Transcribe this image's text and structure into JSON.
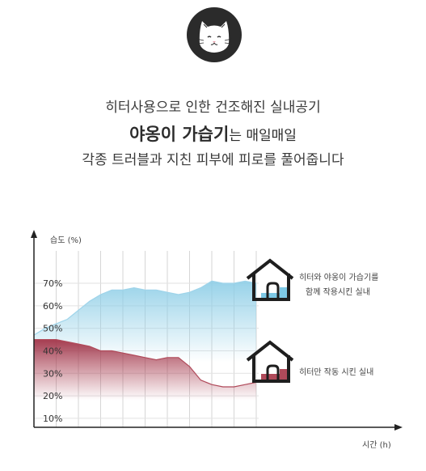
{
  "headline": {
    "line1": "히터사용으로 인한 건조해진 실내공기",
    "line2_bold": "야옹이 가습기",
    "line2_rest": "는 매일매일",
    "line3": "각종 트러블과 지친 피부에 피로를 풀어줍니다"
  },
  "logo": {
    "icon": "cat-face-icon",
    "bg_color": "#2b2b2b"
  },
  "chart_data": {
    "type": "area",
    "ylabel": "습도 (%)",
    "xlabel": "시간 (h)",
    "y_ticks": [
      "70%",
      "60%",
      "50%",
      "40%",
      "30%",
      "20%",
      "10%"
    ],
    "y_tick_values": [
      70,
      60,
      50,
      40,
      30,
      20,
      10
    ],
    "ylim": [
      6,
      88
    ],
    "xlim": [
      0,
      12
    ],
    "grid": true,
    "series": [
      {
        "color": "#9fd4ea",
        "x": [
          0,
          0.5,
          1,
          1.5,
          2,
          2.5,
          3,
          3.5,
          4,
          4.5,
          5,
          5.5,
          6,
          6.5,
          7,
          7.5,
          8,
          8.5,
          9,
          9.5,
          10
        ],
        "values": [
          47,
          50,
          52,
          54,
          58,
          62,
          65,
          67,
          67,
          68,
          67,
          67,
          66,
          65,
          66,
          68,
          71,
          70,
          70,
          71,
          70
        ]
      },
      {
        "color": "#b04a5a",
        "x": [
          0,
          0.5,
          1,
          1.5,
          2,
          2.5,
          3,
          3.5,
          4,
          4.5,
          5,
          5.5,
          6,
          6.5,
          7,
          7.5,
          8,
          8.5,
          9,
          9.5,
          10
        ],
        "values": [
          45,
          45,
          45,
          44,
          43,
          42,
          40,
          40,
          39,
          38,
          37,
          36,
          37,
          37,
          33,
          27,
          25,
          24,
          24,
          25,
          26
        ]
      }
    ],
    "annotations": [
      {
        "lines": [
          "히터와 야옹이 가습기를",
          "함께 작용시킨 실내"
        ],
        "icon": "house-blue-icon",
        "fill_color": "#7ec9e6"
      },
      {
        "lines": [
          "히터만 작동 시킨 실내"
        ],
        "icon": "house-red-icon",
        "fill_color": "#b04a5a"
      }
    ]
  }
}
